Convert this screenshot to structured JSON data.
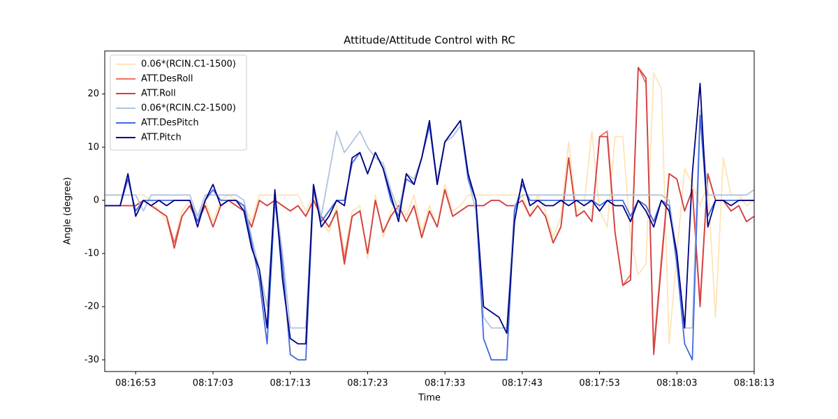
{
  "chart_data": {
    "type": "line",
    "title": "Attitude/Attitude Control with RC",
    "xlabel": "Time",
    "ylabel": "Angle (degree)",
    "x": [
      "08:16:49",
      "08:16:50",
      "08:16:51",
      "08:16:52",
      "08:16:53",
      "08:16:54",
      "08:16:55",
      "08:16:56",
      "08:16:57",
      "08:16:58",
      "08:16:59",
      "08:17:00",
      "08:17:01",
      "08:17:02",
      "08:17:03",
      "08:17:04",
      "08:17:05",
      "08:17:06",
      "08:17:07",
      "08:17:08",
      "08:17:09",
      "08:17:10",
      "08:17:11",
      "08:17:12",
      "08:17:13",
      "08:17:14",
      "08:17:15",
      "08:17:16",
      "08:17:17",
      "08:17:18",
      "08:17:19",
      "08:17:20",
      "08:17:21",
      "08:17:22",
      "08:17:23",
      "08:17:24",
      "08:17:25",
      "08:17:26",
      "08:17:27",
      "08:17:28",
      "08:17:29",
      "08:17:30",
      "08:17:31",
      "08:17:32",
      "08:17:33",
      "08:17:34",
      "08:17:35",
      "08:17:36",
      "08:17:37",
      "08:17:38",
      "08:17:39",
      "08:17:40",
      "08:17:41",
      "08:17:42",
      "08:17:43",
      "08:17:44",
      "08:17:45",
      "08:17:46",
      "08:17:47",
      "08:17:48",
      "08:17:49",
      "08:17:50",
      "08:17:51",
      "08:17:52",
      "08:17:53",
      "08:17:54",
      "08:17:55",
      "08:17:56",
      "08:17:57",
      "08:17:58",
      "08:17:59",
      "08:18:00",
      "08:18:01",
      "08:18:02",
      "08:18:03",
      "08:18:04",
      "08:18:05",
      "08:18:06",
      "08:18:07",
      "08:18:08",
      "08:18:09",
      "08:18:10",
      "08:18:11",
      "08:18:12",
      "08:18:13"
    ],
    "xlim": [
      "08:16:49",
      "08:18:13"
    ],
    "xticks": [
      "08:16:53",
      "08:17:03",
      "08:17:13",
      "08:17:23",
      "08:17:33",
      "08:17:43",
      "08:17:53",
      "08:18:03",
      "08:18:13"
    ],
    "ylim": [
      -32.2,
      28.1
    ],
    "yticks": [
      -30,
      -20,
      -10,
      0,
      10,
      20
    ],
    "legend": "upper left",
    "series": [
      {
        "name": "0.06*(RCIN.C1-1500)",
        "color": "#ffe4b5",
        "values": [
          1,
          1,
          1,
          1,
          1,
          1,
          0,
          -2,
          -4,
          -8,
          -2,
          0,
          -3,
          0,
          -4,
          0,
          1,
          0,
          -1,
          -4,
          1,
          1,
          1,
          1,
          1,
          1,
          -2,
          1,
          -4,
          -6,
          -1,
          -10,
          -2,
          -1,
          -11,
          1,
          -7,
          -2,
          0,
          -3,
          1,
          -6,
          -1,
          -5,
          3,
          -2,
          -1,
          1,
          1,
          1,
          1,
          1,
          1,
          1,
          1,
          -3,
          1,
          -2,
          -7,
          -3,
          11,
          -2,
          -1,
          13,
          -2,
          -5,
          12,
          12,
          -7,
          -14,
          -12,
          24,
          21,
          -27,
          -10,
          6,
          3,
          -1,
          3,
          -22,
          8,
          1,
          1,
          -1,
          0
        ]
      },
      {
        "name": "ATT.DesRoll",
        "color": "#f07060",
        "values": [
          -1,
          -1,
          -1,
          -1,
          -1,
          0,
          -1,
          -2,
          -3,
          -8,
          -3,
          -1,
          -4,
          -1,
          -5,
          -1,
          0,
          -1,
          -2,
          -5,
          0,
          -1,
          0,
          -1,
          -2,
          -1,
          -3,
          0,
          -3,
          -5,
          -2,
          -11,
          -3,
          -2,
          -10,
          0,
          -6,
          -3,
          -1,
          -4,
          -1,
          -7,
          -2,
          -5,
          2,
          -3,
          -2,
          -1,
          -1,
          -1,
          0,
          0,
          -1,
          -1,
          0,
          -3,
          -1,
          -3,
          -8,
          -5,
          8,
          -3,
          -2,
          -4,
          12,
          13,
          -6,
          -16,
          -14,
          25,
          22,
          -28,
          -11,
          5,
          4,
          -2,
          2,
          -19,
          5,
          0,
          0,
          -2,
          -1,
          -4,
          -3
        ]
      },
      {
        "name": "ATT.Roll",
        "color": "#d24040",
        "values": [
          -1,
          -1,
          -1,
          -1,
          -1,
          0,
          -1,
          -2,
          -3,
          -9,
          -3,
          -1,
          -4,
          -1,
          -5,
          -1,
          0,
          -1,
          -2,
          -5,
          0,
          -1,
          0,
          -1,
          -2,
          -1,
          -3,
          0,
          -3,
          -5,
          -2,
          -12,
          -3,
          -2,
          -10,
          0,
          -6,
          -3,
          -1,
          -4,
          -1,
          -7,
          -2,
          -5,
          2,
          -3,
          -2,
          -1,
          -1,
          -1,
          0,
          0,
          -1,
          -1,
          0,
          -3,
          -1,
          -3,
          -8,
          -5,
          8,
          -3,
          -2,
          -4,
          12,
          12,
          -6,
          -16,
          -15,
          25,
          23,
          -29,
          -12,
          5,
          4,
          -2,
          2,
          -20,
          5,
          0,
          0,
          -2,
          -1,
          -4,
          -3
        ]
      },
      {
        "name": "0.06*(RCIN.C2-1500)",
        "color": "#b0c4de",
        "values": [
          1,
          1,
          1,
          1,
          1,
          -2,
          1,
          1,
          1,
          1,
          1,
          1,
          -3,
          1,
          1,
          1,
          1,
          1,
          0,
          -7,
          -13,
          -20,
          1,
          -10,
          -24,
          -24,
          -24,
          3,
          -3,
          5,
          13,
          9,
          11,
          13,
          10,
          8,
          7,
          2,
          -2,
          5,
          4,
          8,
          14,
          4,
          11,
          12,
          14,
          4,
          -2,
          -22,
          -24,
          -24,
          -24,
          -1,
          1,
          1,
          1,
          1,
          1,
          1,
          1,
          1,
          1,
          1,
          1,
          1,
          1,
          1,
          1,
          1,
          1,
          1,
          1,
          0,
          -10,
          -24,
          -24,
          17,
          1,
          1,
          1,
          1,
          1,
          1,
          2
        ]
      },
      {
        "name": "ATT.DesPitch",
        "color": "#4169e1",
        "values": [
          -1,
          -1,
          -1,
          4,
          -2,
          0,
          0,
          0,
          0,
          0,
          0,
          0,
          -4,
          0,
          2,
          0,
          0,
          0,
          -1,
          -8,
          -15,
          -27,
          0,
          -12,
          -29,
          -30,
          -30,
          2,
          -4,
          -2,
          0,
          0,
          7,
          9,
          5,
          9,
          6,
          0,
          -3,
          4,
          3,
          8,
          14,
          3,
          11,
          13,
          15,
          4,
          0,
          -26,
          -30,
          -30,
          -30,
          -2,
          3,
          0,
          0,
          0,
          0,
          0,
          0,
          0,
          0,
          0,
          -1,
          0,
          0,
          0,
          -3,
          0,
          -1,
          -4,
          0,
          -1,
          -12,
          -27,
          -30,
          16,
          -3,
          0,
          0,
          0,
          0,
          0,
          0
        ]
      },
      {
        "name": "ATT.Pitch",
        "color": "#000080",
        "values": [
          -1,
          -1,
          -1,
          5,
          -3,
          0,
          -1,
          0,
          -1,
          0,
          0,
          0,
          -5,
          0,
          3,
          -1,
          0,
          0,
          -2,
          -9,
          -13,
          -24,
          2,
          -15,
          -26,
          -27,
          -27,
          3,
          -5,
          -3,
          0,
          -1,
          8,
          9,
          5,
          9,
          6,
          1,
          -4,
          5,
          3,
          8,
          15,
          3,
          11,
          13,
          15,
          5,
          0,
          -20,
          -21,
          -22,
          -25,
          -4,
          4,
          -1,
          0,
          -1,
          -1,
          0,
          -1,
          0,
          -1,
          0,
          -2,
          0,
          -1,
          -1,
          -4,
          0,
          -2,
          -5,
          0,
          -2,
          -10,
          -24,
          5,
          22,
          -5,
          0,
          0,
          -1,
          0,
          0,
          0
        ]
      }
    ]
  }
}
